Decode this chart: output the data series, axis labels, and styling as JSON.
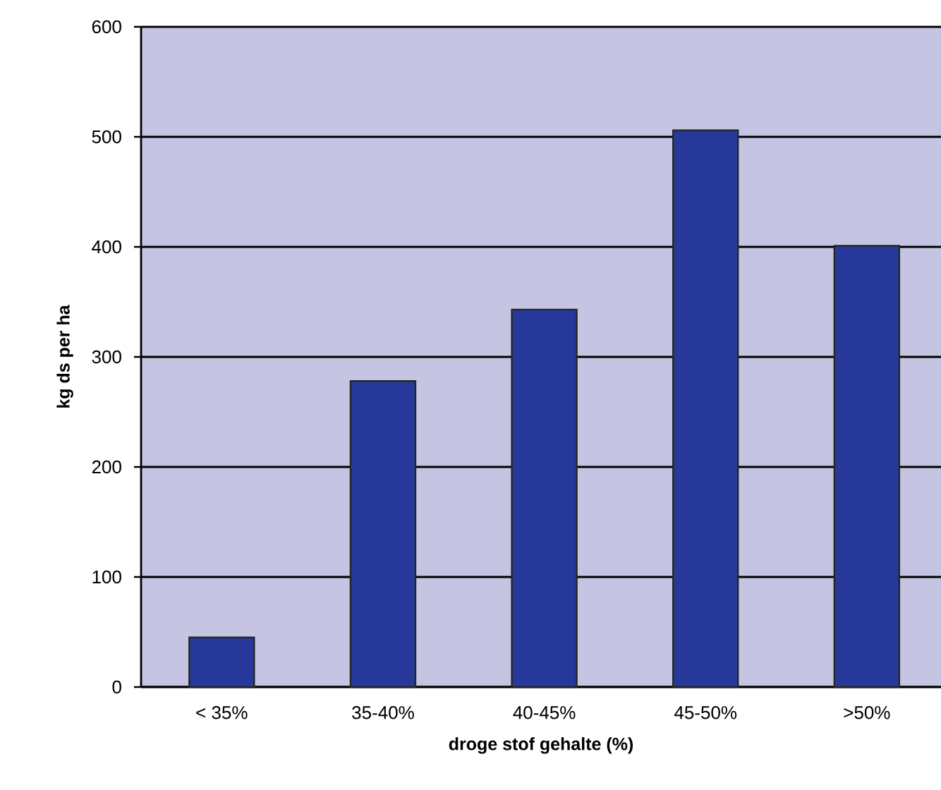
{
  "chart_data": {
    "type": "bar",
    "xlabel": "droge stof gehalte (%)",
    "ylabel": "kg ds per ha",
    "categories": [
      "< 35%",
      "35-40%",
      "40-45%",
      "45-50%",
      ">50%"
    ],
    "values": [
      45,
      278,
      343,
      506,
      401
    ],
    "color": "#26399a",
    "ylim": [
      0,
      600
    ],
    "yticks": [
      0,
      100,
      200,
      300,
      400,
      500,
      600
    ],
    "grid": "y"
  }
}
